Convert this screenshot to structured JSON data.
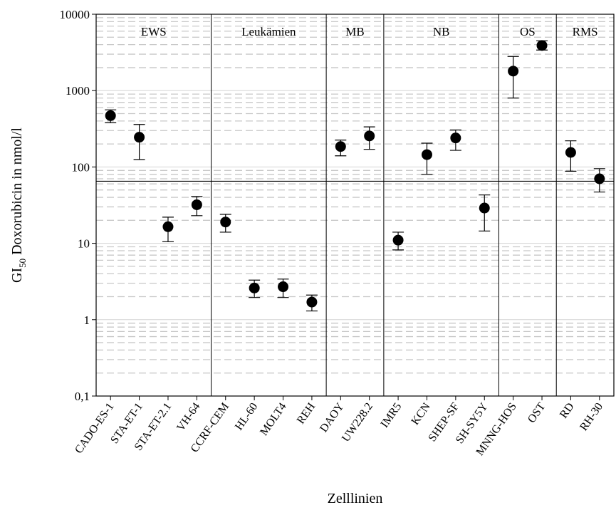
{
  "chart_data": {
    "type": "scatter",
    "ylabel": "GI",
    "ylabel_subscript": "50",
    "ylabel_rest": " Doxorubicin in nmol/l",
    "xlabel": "Zelllinien",
    "y_scale": "log",
    "ylim": [
      0.1,
      10000
    ],
    "y_ticks": [
      0.1,
      1,
      10,
      100,
      1000,
      10000
    ],
    "y_tick_labels": [
      "0,1",
      "1",
      "10",
      "100",
      "1000",
      "10000"
    ],
    "reference_line": 65,
    "grid": "dashed minor gridlines",
    "groups": [
      {
        "label": "EWS",
        "start": 0,
        "end": 3
      },
      {
        "label": "Leukämien",
        "start": 4,
        "end": 7
      },
      {
        "label": "MB",
        "start": 8,
        "end": 9
      },
      {
        "label": "NB",
        "start": 10,
        "end": 13
      },
      {
        "label": "OS",
        "start": 14,
        "end": 15
      },
      {
        "label": "RMS",
        "start": 16,
        "end": 17
      }
    ],
    "categories": [
      "CADO-ES-1",
      "STA-ET-1",
      "STA-ET-2.1",
      "VH-64",
      "CCRF-CEM",
      "HL-60",
      "MOLT4",
      "REH",
      "DAOY",
      "UW228.2",
      "IMR5",
      "KCN",
      "SHEP-SF",
      "SH-SY5Y",
      "MNNG-HOS",
      "OST",
      "RD",
      "RH-30"
    ],
    "values": [
      470,
      245,
      16.5,
      32,
      19,
      2.6,
      2.7,
      1.7,
      185,
      255,
      11,
      145,
      240,
      29,
      1800,
      3900,
      155,
      70
    ],
    "err_low": [
      380,
      125,
      10.5,
      23,
      14,
      1.95,
      1.95,
      1.3,
      140,
      170,
      8.2,
      80,
      165,
      14.5,
      800,
      3400,
      88,
      47
    ],
    "err_high": [
      560,
      360,
      22,
      41,
      24,
      3.3,
      3.4,
      2.1,
      225,
      335,
      14,
      205,
      305,
      43,
      2800,
      4500,
      220,
      95
    ]
  }
}
